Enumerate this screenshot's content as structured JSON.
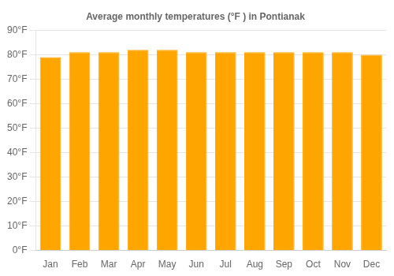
{
  "chart_data": {
    "type": "bar",
    "title": "Average monthly temperatures (°F ) in Pontianak",
    "categories": [
      "Jan",
      "Feb",
      "Mar",
      "Apr",
      "May",
      "Jun",
      "Jul",
      "Aug",
      "Sep",
      "Oct",
      "Nov",
      "Dec"
    ],
    "values": [
      79,
      81,
      81,
      82,
      82,
      81,
      81,
      81,
      81,
      81,
      81,
      80
    ],
    "color": "#FFA500",
    "ylim": [
      0,
      90
    ],
    "yticks": [
      {
        "value": 0,
        "label": "0°F"
      },
      {
        "value": 10,
        "label": "10°F"
      },
      {
        "value": 20,
        "label": "20°F"
      },
      {
        "value": 30,
        "label": "30°F"
      },
      {
        "value": 40,
        "label": "40°F"
      },
      {
        "value": 50,
        "label": "50°F"
      },
      {
        "value": 60,
        "label": "60°F"
      },
      {
        "value": 70,
        "label": "70°F"
      },
      {
        "value": 80,
        "label": "80°F"
      },
      {
        "value": 90,
        "label": "90°F"
      }
    ],
    "grid": true
  }
}
